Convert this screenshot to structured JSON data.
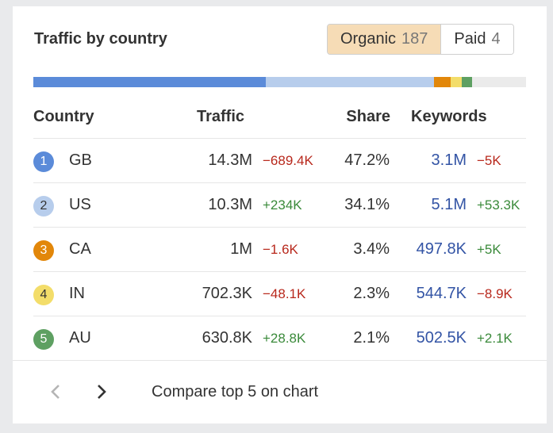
{
  "widget": {
    "title": "Traffic by country",
    "toggle": {
      "organic_label": "Organic",
      "organic_count": "187",
      "paid_label": "Paid",
      "paid_count": "4"
    },
    "share_bar": [
      {
        "pct": 47.2,
        "color": "#5b8bd9"
      },
      {
        "pct": 34.1,
        "color": "#b7cdec"
      },
      {
        "pct": 3.4,
        "color": "#e2870a"
      },
      {
        "pct": 2.3,
        "color": "#f3dd6a"
      },
      {
        "pct": 2.1,
        "color": "#5ea062"
      }
    ],
    "columns": {
      "country": "Country",
      "traffic": "Traffic",
      "share": "Share",
      "keywords": "Keywords"
    },
    "rows": [
      {
        "rank": "1",
        "code": "GB",
        "traffic": "14.3M",
        "traffic_delta": "−689.4K",
        "traffic_trend": "neg",
        "share": "47.2%",
        "keywords": "3.1M",
        "keywords_delta": "−5K",
        "keywords_trend": "neg",
        "rank_bg": "#5b8bd9",
        "rank_fg": "#ffffff"
      },
      {
        "rank": "2",
        "code": "US",
        "traffic": "10.3M",
        "traffic_delta": "+234K",
        "traffic_trend": "pos",
        "share": "34.1%",
        "keywords": "5.1M",
        "keywords_delta": "+53.3K",
        "keywords_trend": "pos",
        "rank_bg": "#b7cdec",
        "rank_fg": "#333333"
      },
      {
        "rank": "3",
        "code": "CA",
        "traffic": "1M",
        "traffic_delta": "−1.6K",
        "traffic_trend": "neg",
        "share": "3.4%",
        "keywords": "497.8K",
        "keywords_delta": "+5K",
        "keywords_trend": "pos",
        "rank_bg": "#e2870a",
        "rank_fg": "#ffffff"
      },
      {
        "rank": "4",
        "code": "IN",
        "traffic": "702.3K",
        "traffic_delta": "−48.1K",
        "traffic_trend": "neg",
        "share": "2.3%",
        "keywords": "544.7K",
        "keywords_delta": "−8.9K",
        "keywords_trend": "neg",
        "rank_bg": "#f3dd6a",
        "rank_fg": "#333333"
      },
      {
        "rank": "5",
        "code": "AU",
        "traffic": "630.8K",
        "traffic_delta": "+28.8K",
        "traffic_trend": "pos",
        "share": "2.1%",
        "keywords": "502.5K",
        "keywords_delta": "+2.1K",
        "keywords_trend": "pos",
        "rank_bg": "#5ea062",
        "rank_fg": "#ffffff"
      }
    ],
    "footer": {
      "prev_icon": "chevron-left-icon",
      "next_icon": "chevron-right-icon",
      "compare_label": "Compare top 5 on chart"
    }
  }
}
